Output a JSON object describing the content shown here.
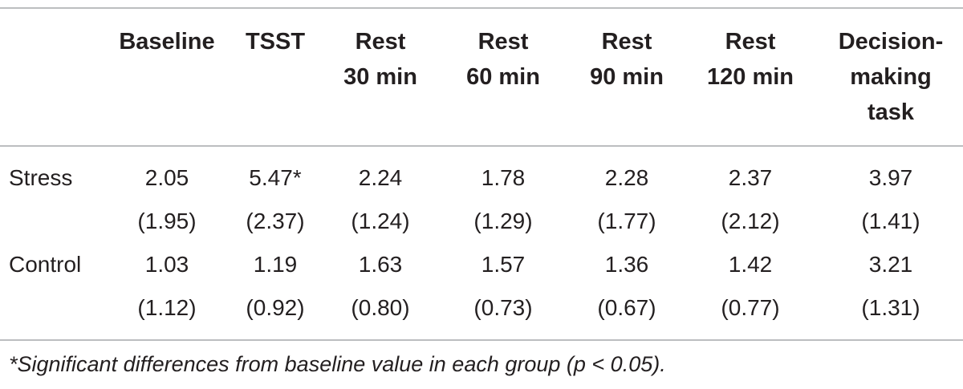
{
  "table": {
    "columns": [
      {
        "lines": [
          "Baseline"
        ]
      },
      {
        "lines": [
          "TSST"
        ]
      },
      {
        "lines": [
          "Rest",
          "30 min"
        ]
      },
      {
        "lines": [
          "Rest",
          "60 min"
        ]
      },
      {
        "lines": [
          "Rest",
          "90 min"
        ]
      },
      {
        "lines": [
          "Rest",
          "120 min"
        ]
      },
      {
        "lines": [
          "Decision-",
          "making",
          "task"
        ]
      }
    ],
    "rows": [
      {
        "label": "Stress",
        "means": [
          "2.05",
          "5.47*",
          "2.24",
          "1.78",
          "2.28",
          "2.37",
          "3.97"
        ],
        "sds": [
          "(1.95)",
          "(2.37)",
          "(1.24)",
          "(1.29)",
          "(1.77)",
          "(2.12)",
          "(1.41)"
        ]
      },
      {
        "label": "Control",
        "means": [
          "1.03",
          "1.19",
          "1.63",
          "1.57",
          "1.36",
          "1.42",
          "3.21"
        ],
        "sds": [
          "(1.12)",
          "(0.92)",
          "(0.80)",
          "(0.73)",
          "(0.67)",
          "(0.77)",
          "(1.31)"
        ]
      }
    ]
  },
  "footnote": "*Significant differences from baseline value in each group (p < 0.05)."
}
